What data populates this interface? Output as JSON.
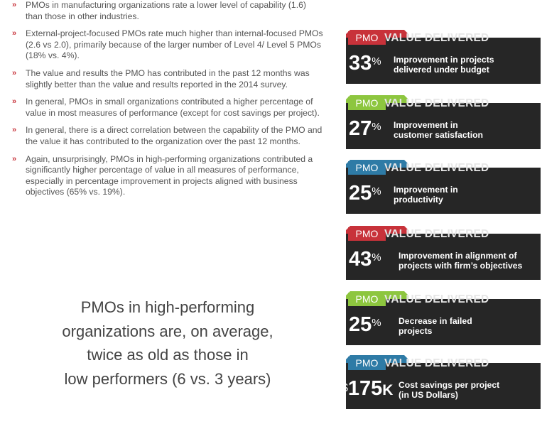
{
  "bullet_marker": "»",
  "bullets": [
    "PMOs in manufacturing organizations rate a lower level of capability (1.6) than those in other industries.",
    "External-project-focused PMOs rate much higher than internal-focused PMOs (2.6 vs 2.0), primarily because of the larger number of Level 4/ Level 5 PMOs (18% vs. 4%).",
    "The value and results the PMO has contributed in the past 12 months was slightly better than the value and results reported in the 2014 survey.",
    "In general, PMOs in small organizations contributed a higher percentage of value in most measures of performance (except for cost savings per project).",
    "In general, there is a direct correlation between the capability of the PMO and the value it has contributed to the organization over the past 12 months.",
    "Again, unsurprisingly, PMOs in high-performing organizations contributed a significantly higher percentage of value in all measures of performance, especially in percentage improvement in projects aligned with business objectives (65% vs. 19%)."
  ],
  "quote": {
    "line1": "PMOs in high-performing",
    "line2": "organizations are, on average,",
    "line3": "twice as old as those in",
    "line4": "low performers (6 vs. 3 years)"
  },
  "colors": {
    "red": "#c8323a",
    "green": "#8dc63f",
    "blue": "#2e7ba6",
    "card_body": "#262626"
  },
  "cards": [
    {
      "color": "red",
      "pmo": "PMO",
      "title": "VALUE DELIVERED",
      "prefix": "",
      "value": "33",
      "suffix": "%",
      "desc1": "Improvement in projects",
      "desc2": "delivered under budget"
    },
    {
      "color": "green",
      "pmo": "PMO",
      "title": "VALUE DELIVERED",
      "prefix": "",
      "value": "27",
      "suffix": "%",
      "desc1": "Improvement in",
      "desc2": "customer satisfaction"
    },
    {
      "color": "blue",
      "pmo": "PMO",
      "title": "VALUE DELIVERED",
      "prefix": "",
      "value": "25",
      "suffix": "%",
      "desc1": "Improvement in",
      "desc2": "productivity"
    },
    {
      "color": "red",
      "pmo": "PMO",
      "title": "VALUE DELIVERED",
      "prefix": "",
      "value": "43",
      "suffix": "%",
      "desc1": "Improvement in alignment of",
      "desc2": "projects with firm’s objectives"
    },
    {
      "color": "green",
      "pmo": "PMO",
      "title": "VALUE DELIVERED",
      "prefix": "",
      "value": "25",
      "suffix": "%",
      "desc1": "Decrease in failed",
      "desc2": "projects"
    },
    {
      "color": "blue",
      "pmo": "PMO",
      "title": "VALUE DELIVERED",
      "prefix": "$",
      "value": "175",
      "suffix": "K",
      "desc1": "Cost savings per project",
      "desc2": "(in US Dollars)"
    }
  ]
}
